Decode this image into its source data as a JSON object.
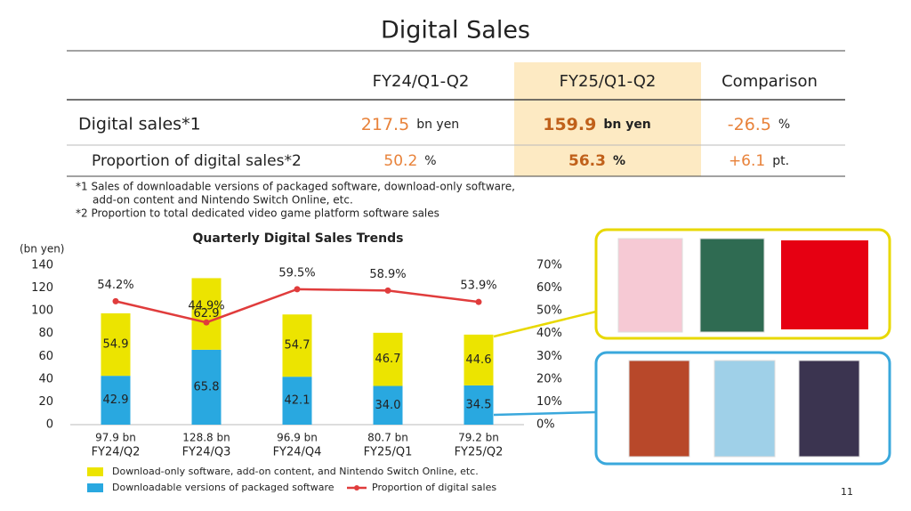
{
  "title": "Digital Sales",
  "table": {
    "columns": [
      "FY24/Q1-Q2",
      "FY25/Q1-Q2",
      "Comparison"
    ],
    "rows": [
      {
        "label": "Digital sales*1",
        "cells": [
          {
            "value": "217.5",
            "unit": "bn yen"
          },
          {
            "value": "159.9",
            "unit": "bn yen"
          },
          {
            "value": "-26.5",
            "unit": "%"
          }
        ]
      },
      {
        "label": "Proportion of digital sales*2",
        "cells": [
          {
            "value": "50.2",
            "unit": "%"
          },
          {
            "value": "56.3",
            "unit": "%"
          },
          {
            "value": "+6.1",
            "unit": "pt."
          }
        ]
      }
    ]
  },
  "footnotes": [
    "*1 Sales of downloadable versions of packaged software, download-only software,",
    "add-on content and Nintendo Switch Online, etc.",
    "*2 Proportion to total dedicated video game platform software sales"
  ],
  "page_number": "11",
  "chart_data": {
    "type": "bar",
    "stacked": true,
    "title": "Quarterly Digital Sales Trends",
    "y_label": "(bn yen)",
    "categories": [
      "FY24/Q2",
      "FY24/Q3",
      "FY24/Q4",
      "FY25/Q1",
      "FY25/Q2"
    ],
    "totals": {
      "values": [
        97.9,
        128.8,
        96.9,
        80.7,
        79.2
      ],
      "value_labels": [
        "97.9 bn",
        "128.8 bn",
        "96.9 bn",
        "80.7 bn",
        "79.2 bn"
      ]
    },
    "series": [
      {
        "name": "Downloadable versions of packaged software",
        "color": "#29a8e0",
        "values": [
          42.9,
          65.8,
          42.1,
          34.0,
          34.5
        ],
        "value_labels": [
          "42.9",
          "65.8",
          "42.1",
          "34.0",
          "34.5"
        ]
      },
      {
        "name": "Download-only software, add-on content, and Nintendo Switch Online, etc.",
        "color": "#ece400",
        "values": [
          54.9,
          62.9,
          54.7,
          46.7,
          44.6
        ]
      },
      {
        "name": "Proportion of digital sales",
        "type": "line",
        "axis": "y2",
        "color": "#e03c3c",
        "values": [
          54.2,
          44.9,
          59.5,
          58.9,
          53.9
        ],
        "value_labels": [
          "54.2%",
          "44.9%",
          "59.5%",
          "58.9%",
          "53.9%"
        ]
      }
    ],
    "ylim": [
      0,
      140
    ],
    "yticks": [
      0,
      20,
      40,
      60,
      80,
      100,
      120,
      140
    ],
    "y2lim": [
      0,
      70
    ],
    "y2ticks": [
      {
        "value": 0,
        "label": "0%"
      },
      {
        "value": 10,
        "label": "10%"
      },
      {
        "value": 20,
        "label": "20%"
      },
      {
        "value": 30,
        "label": "30%"
      },
      {
        "value": 40,
        "label": "40%"
      },
      {
        "value": 50,
        "label": "50%"
      },
      {
        "value": 60,
        "label": "60%"
      },
      {
        "value": 70,
        "label": "70%"
      }
    ],
    "grid": false
  }
}
